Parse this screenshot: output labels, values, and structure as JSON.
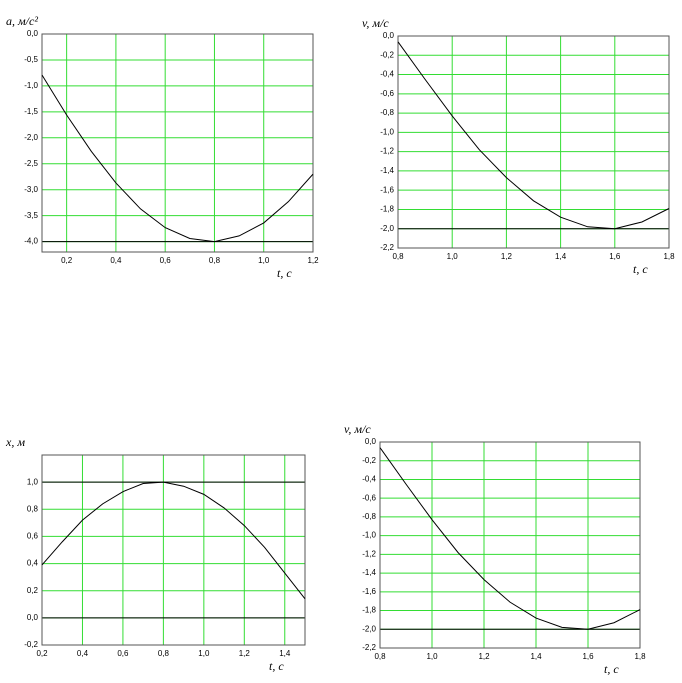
{
  "chart_data": [
    {
      "type": "line",
      "ylabel": "a, м/с²",
      "xlabel": "t, с",
      "color": "#000000",
      "grid": true,
      "grid_color": "#33dd33",
      "x": [
        0.1,
        0.2,
        0.3,
        0.4,
        0.5,
        0.6,
        0.7,
        0.8,
        0.9,
        1.0,
        1.1,
        1.2
      ],
      "values": [
        -0.79,
        -1.56,
        -2.26,
        -2.87,
        -3.37,
        -3.73,
        -3.94,
        -4.0,
        -3.89,
        -3.64,
        -3.23,
        -2.7
      ],
      "xlim": [
        0.1,
        1.2
      ],
      "ylim": [
        -4.2,
        0
      ],
      "xticks": [
        {
          "value": 0.2,
          "label": "0,2"
        },
        {
          "value": 0.4,
          "label": "0,4"
        },
        {
          "value": 0.6,
          "label": "0,6"
        },
        {
          "value": 0.8,
          "label": "0,8"
        },
        {
          "value": 1.0,
          "label": "1,0"
        },
        {
          "value": 1.2,
          "label": "1,2"
        }
      ],
      "yticks": [
        {
          "value": 0,
          "label": "0,0"
        },
        {
          "value": -0.5,
          "label": "-0,5"
        },
        {
          "value": -1.0,
          "label": "-1,0"
        },
        {
          "value": -1.5,
          "label": "-1,5"
        },
        {
          "value": -2.0,
          "label": "-2,0"
        },
        {
          "value": -2.5,
          "label": "-2,5"
        },
        {
          "value": -3.0,
          "label": "-3,0"
        },
        {
          "value": -3.5,
          "label": "-3,5"
        },
        {
          "value": -4.0,
          "label": "-4,0"
        }
      ],
      "hlines": [
        -4.0
      ]
    },
    {
      "type": "line",
      "ylabel": "v, м/с",
      "xlabel": "t, с",
      "color": "#000000",
      "grid": true,
      "grid_color": "#33dd33",
      "x": [
        0.8,
        0.9,
        1.0,
        1.1,
        1.2,
        1.3,
        1.4,
        1.5,
        1.6,
        1.7,
        1.8
      ],
      "values": [
        -0.06,
        -0.45,
        -0.83,
        -1.18,
        -1.47,
        -1.71,
        -1.88,
        -1.98,
        -2.0,
        -1.93,
        -1.79
      ],
      "xlim": [
        0.8,
        1.8
      ],
      "ylim": [
        -2.2,
        0
      ],
      "xticks": [
        {
          "value": 0.8,
          "label": "0,8"
        },
        {
          "value": 1.0,
          "label": "1,0"
        },
        {
          "value": 1.2,
          "label": "1,2"
        },
        {
          "value": 1.4,
          "label": "1,4"
        },
        {
          "value": 1.6,
          "label": "1,6"
        },
        {
          "value": 1.8,
          "label": "1,8"
        }
      ],
      "yticks": [
        {
          "value": 0,
          "label": "0,0"
        },
        {
          "value": -0.2,
          "label": "-0,2"
        },
        {
          "value": -0.4,
          "label": "-0,4"
        },
        {
          "value": -0.6,
          "label": "-0,6"
        },
        {
          "value": -0.8,
          "label": "-0,8"
        },
        {
          "value": -1.0,
          "label": "-1,0"
        },
        {
          "value": -1.2,
          "label": "-1,2"
        },
        {
          "value": -1.4,
          "label": "-1,4"
        },
        {
          "value": -1.6,
          "label": "-1,6"
        },
        {
          "value": -1.8,
          "label": "-1,8"
        },
        {
          "value": -2.0,
          "label": "-2,0"
        },
        {
          "value": -2.2,
          "label": "-2,2"
        }
      ],
      "hlines": [
        -2.0
      ]
    },
    {
      "type": "line",
      "ylabel": "x, м",
      "xlabel": "t, с",
      "color": "#000000",
      "grid": true,
      "grid_color": "#33dd33",
      "x": [
        0.2,
        0.3,
        0.4,
        0.5,
        0.6,
        0.7,
        0.8,
        0.9,
        1.0,
        1.1,
        1.2,
        1.3,
        1.4,
        1.5
      ],
      "values": [
        0.39,
        0.56,
        0.72,
        0.84,
        0.93,
        0.99,
        1.0,
        0.97,
        0.91,
        0.81,
        0.68,
        0.52,
        0.33,
        0.14
      ],
      "xlim": [
        0.2,
        1.5
      ],
      "ylim": [
        -0.2,
        1.2
      ],
      "xticks": [
        {
          "value": 0.2,
          "label": "0,2"
        },
        {
          "value": 0.4,
          "label": "0,4"
        },
        {
          "value": 0.6,
          "label": "0,6"
        },
        {
          "value": 0.8,
          "label": "0,8"
        },
        {
          "value": 1.0,
          "label": "1,0"
        },
        {
          "value": 1.2,
          "label": "1,2"
        },
        {
          "value": 1.4,
          "label": "1,4"
        }
      ],
      "yticks": [
        {
          "value": -0.2,
          "label": "-0,2"
        },
        {
          "value": 0,
          "label": "0,0"
        },
        {
          "value": 0.2,
          "label": "0,2"
        },
        {
          "value": 0.4,
          "label": "0,4"
        },
        {
          "value": 0.6,
          "label": "0,6"
        },
        {
          "value": 0.8,
          "label": "0,8"
        },
        {
          "value": 1.0,
          "label": "1,0"
        }
      ],
      "hlines": [
        1.0,
        0
      ]
    },
    {
      "type": "line",
      "ylabel": "v, м/с",
      "xlabel": "t, с",
      "color": "#000000",
      "grid": true,
      "grid_color": "#33dd33",
      "x": [
        0.8,
        0.9,
        1.0,
        1.1,
        1.2,
        1.3,
        1.4,
        1.5,
        1.6,
        1.7,
        1.8
      ],
      "values": [
        -0.06,
        -0.45,
        -0.83,
        -1.18,
        -1.47,
        -1.71,
        -1.88,
        -1.98,
        -2.0,
        -1.93,
        -1.79
      ],
      "xlim": [
        0.8,
        1.8
      ],
      "ylim": [
        -2.2,
        0
      ],
      "xticks": [
        {
          "value": 0.8,
          "label": "0,8"
        },
        {
          "value": 1.0,
          "label": "1,0"
        },
        {
          "value": 1.2,
          "label": "1,2"
        },
        {
          "value": 1.4,
          "label": "1,4"
        },
        {
          "value": 1.6,
          "label": "1,6"
        },
        {
          "value": 1.8,
          "label": "1,8"
        }
      ],
      "yticks": [
        {
          "value": 0,
          "label": "0,0"
        },
        {
          "value": -0.2,
          "label": "-0,2"
        },
        {
          "value": -0.4,
          "label": "-0,4"
        },
        {
          "value": -0.6,
          "label": "-0,6"
        },
        {
          "value": -0.8,
          "label": "-0,8"
        },
        {
          "value": -1.0,
          "label": "-1,0"
        },
        {
          "value": -1.2,
          "label": "-1,2"
        },
        {
          "value": -1.4,
          "label": "-1,4"
        },
        {
          "value": -1.6,
          "label": "-1,6"
        },
        {
          "value": -1.8,
          "label": "-1,8"
        },
        {
          "value": -2.0,
          "label": "-2,0"
        },
        {
          "value": -2.2,
          "label": "-2,2"
        }
      ],
      "hlines": [
        -2.0
      ]
    }
  ]
}
